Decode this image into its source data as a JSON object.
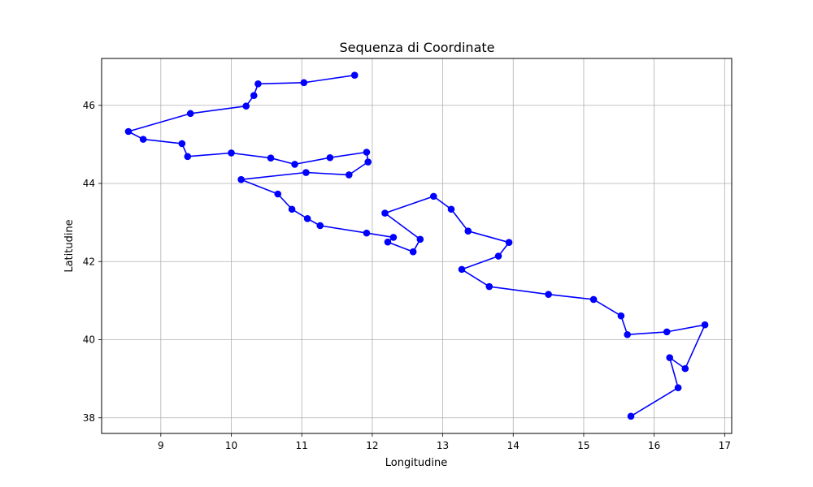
{
  "chart_data": {
    "type": "line",
    "title": "Sequenza di Coordinate",
    "xlabel": "Longitudine",
    "ylabel": "Latitudine",
    "xlim": [
      8.16,
      17.1
    ],
    "ylim": [
      37.6,
      47.2
    ],
    "xticks": [
      "9",
      "10",
      "11",
      "12",
      "13",
      "14",
      "15",
      "16",
      "17"
    ],
    "yticks": [
      "38",
      "40",
      "42",
      "44",
      "46"
    ],
    "grid": true,
    "marker": "circle",
    "color": "#0000ff",
    "series": [
      {
        "x": [
          11.75,
          11.03,
          10.38,
          10.32,
          10.21,
          9.42,
          8.54,
          8.75,
          9.3,
          9.38,
          10.0,
          10.56,
          10.9,
          11.4,
          11.92,
          11.94,
          11.67,
          11.06,
          10.14,
          10.66,
          10.86,
          11.08,
          11.26,
          11.92,
          12.3,
          12.22,
          12.58,
          12.68,
          12.18,
          12.87,
          13.12,
          13.36,
          13.94,
          13.79,
          13.27,
          13.66,
          14.5,
          15.14,
          15.53,
          15.62,
          16.18,
          16.72,
          16.44,
          16.22,
          16.34,
          15.67
        ],
        "y": [
          46.77,
          46.58,
          46.55,
          46.25,
          45.98,
          45.79,
          45.33,
          45.13,
          45.02,
          44.69,
          44.78,
          44.65,
          44.49,
          44.66,
          44.8,
          44.55,
          44.22,
          44.28,
          44.1,
          43.73,
          43.34,
          43.1,
          42.92,
          42.73,
          42.62,
          42.5,
          42.25,
          42.57,
          43.24,
          43.67,
          43.34,
          42.78,
          42.49,
          42.14,
          41.8,
          41.36,
          41.16,
          41.03,
          40.61,
          40.13,
          40.2,
          40.38,
          39.26,
          39.54,
          38.77,
          38.04
        ]
      }
    ]
  }
}
